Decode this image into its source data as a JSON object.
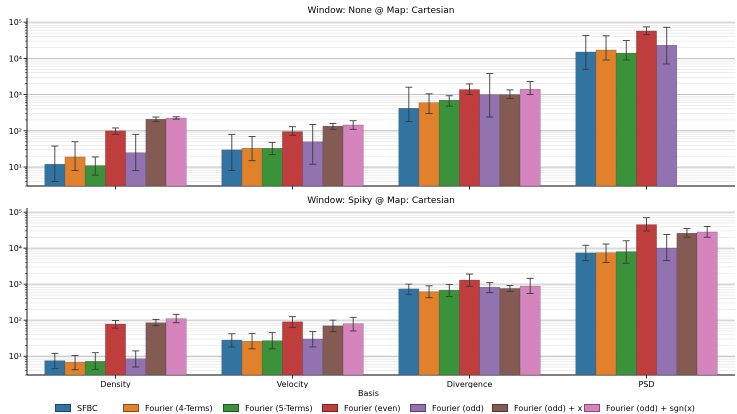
{
  "legend": {
    "title": "Basis",
    "items": [
      "SFBC",
      "Fourier (4-Terms)",
      "Fourier (5-Terms)",
      "Fourier (even)",
      "Fourier (odd)",
      "Fourier (odd) + x",
      "Fourier (odd) + sgn(x)"
    ]
  },
  "colors": [
    "#3274a1",
    "#e1812c",
    "#3a923a",
    "#c03d3e",
    "#9372b2",
    "#845b53",
    "#d684bd"
  ],
  "chart_data": [
    {
      "type": "bar",
      "title": "Window: None @ Map: Cartesian",
      "categories": [
        "Density",
        "Velocity",
        "Divergence",
        "PSD"
      ],
      "yscale": "log",
      "ylim": [
        3,
        130000
      ],
      "show_xticklabels": false,
      "series": [
        {
          "name": "SFBC",
          "values": [
            12,
            30,
            420,
            15000
          ],
          "err_low": [
            4,
            8,
            180,
            5000
          ],
          "err_high": [
            38,
            80,
            1600,
            43000
          ]
        },
        {
          "name": "Fourier (4-Terms)",
          "values": [
            19,
            33,
            600,
            17000
          ],
          "err_low": [
            8,
            15,
            300,
            9000
          ],
          "err_high": [
            50,
            70,
            1050,
            42000
          ]
        },
        {
          "name": "Fourier (5-Terms)",
          "values": [
            11,
            33,
            700,
            14000
          ],
          "err_low": [
            6,
            22,
            480,
            9000
          ],
          "err_high": [
            19,
            48,
            930,
            31000
          ]
        },
        {
          "name": "Fourier (even)",
          "values": [
            100,
            95,
            1380,
            57000
          ],
          "err_low": [
            80,
            75,
            1000,
            45000
          ],
          "err_high": [
            120,
            130,
            1970,
            74000
          ]
        },
        {
          "name": "Fourier (odd)",
          "values": [
            25,
            50,
            1000,
            23000
          ],
          "err_low": [
            8,
            12,
            240,
            7000
          ],
          "err_high": [
            80,
            150,
            3800,
            72000
          ]
        },
        {
          "name": "Fourier (odd) + x",
          "values": [
            210,
            135,
            1000,
            null
          ],
          "err_low": [
            180,
            110,
            780,
            null
          ],
          "err_high": [
            240,
            160,
            1350,
            null
          ]
        },
        {
          "name": "Fourier (odd) + sgn(x)",
          "values": [
            225,
            145,
            1400,
            null
          ],
          "err_low": [
            210,
            110,
            1000,
            null
          ],
          "err_high": [
            245,
            190,
            2300,
            null
          ]
        }
      ]
    },
    {
      "type": "bar",
      "title": "Window: Spiky @ Map: Cartesian",
      "categories": [
        "Density",
        "Velocity",
        "Divergence",
        "PSD"
      ],
      "yscale": "log",
      "ylim": [
        3,
        130000
      ],
      "show_xticklabels": true,
      "series": [
        {
          "name": "SFBC",
          "values": [
            7.5,
            28,
            740,
            7400
          ],
          "err_low": [
            4.5,
            18,
            520,
            4500
          ],
          "err_high": [
            12,
            42,
            1000,
            12000
          ]
        },
        {
          "name": "Fourier (4-Terms)",
          "values": [
            6.8,
            26,
            620,
            7500
          ],
          "err_low": [
            4.2,
            16,
            420,
            4000
          ],
          "err_high": [
            10.5,
            43,
            900,
            13000
          ]
        },
        {
          "name": "Fourier (5-Terms)",
          "values": [
            7.2,
            27,
            680,
            8000
          ],
          "err_low": [
            4.3,
            16,
            450,
            3800
          ],
          "err_high": [
            12.5,
            45,
            980,
            16000
          ]
        },
        {
          "name": "Fourier (even)",
          "values": [
            78,
            90,
            1300,
            45000
          ],
          "err_low": [
            60,
            62,
            870,
            30000
          ],
          "err_high": [
            98,
            125,
            1900,
            70000
          ]
        },
        {
          "name": "Fourier (odd)",
          "values": [
            8.5,
            30,
            820,
            10000
          ],
          "err_low": [
            5,
            18,
            580,
            4500
          ],
          "err_high": [
            14,
            48,
            1100,
            24000
          ]
        },
        {
          "name": "Fourier (odd) + x",
          "values": [
            85,
            70,
            760,
            26000
          ],
          "err_low": [
            70,
            48,
            620,
            20000
          ],
          "err_high": [
            105,
            100,
            920,
            35000
          ]
        },
        {
          "name": "Fourier (odd) + sgn(x)",
          "values": [
            110,
            80,
            880,
            28000
          ],
          "err_low": [
            85,
            50,
            550,
            20000
          ],
          "err_high": [
            145,
            120,
            1450,
            40000
          ]
        }
      ]
    }
  ]
}
